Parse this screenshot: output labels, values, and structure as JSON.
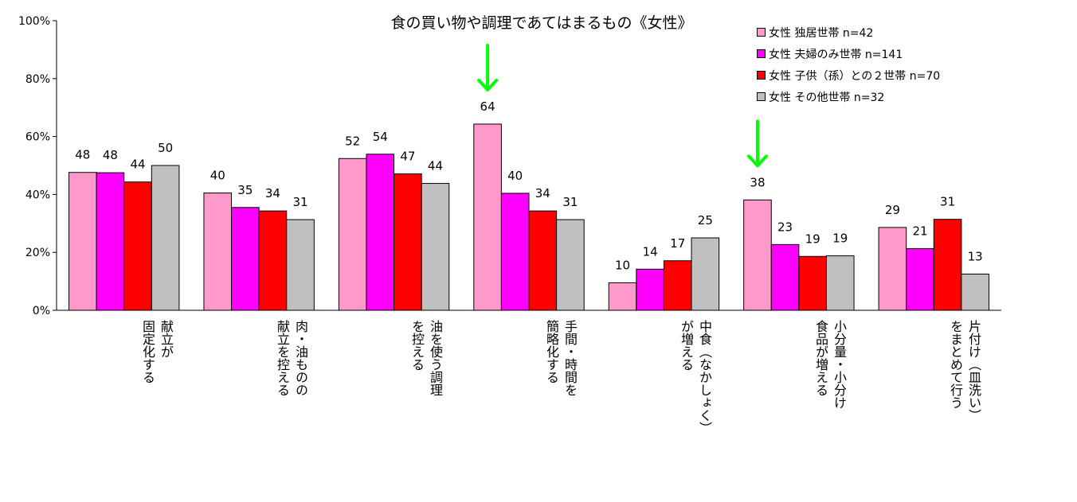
{
  "chart_data": {
    "type": "bar",
    "title": "食の買い物や調理であてはまるもの《女性》",
    "xlabel": "",
    "ylabel": "",
    "ylim": [
      0,
      100
    ],
    "y_ticks": [
      "0%",
      "20%",
      "40%",
      "60%",
      "80%",
      "100%"
    ],
    "grid": false,
    "legend_position": "top-right",
    "categories": [
      "献立が\n固定化する",
      "肉・油ものの\n献立を控える",
      "油を使う調理\nを控える",
      "手間・時間を\n簡略化する",
      "中食（なかしょく）\nが増える",
      "小分量・小分け\n食品が増える",
      "片付け（皿洗い）\nをまとめて行う"
    ],
    "series": [
      {
        "name": "女性  独居世帯  n=42",
        "color": "#FF99CC",
        "values": [
          48,
          40,
          52,
          64,
          10,
          38,
          29
        ],
        "bar_values": [
          47.6,
          40.5,
          52.4,
          64.3,
          9.5,
          38.1,
          28.6
        ]
      },
      {
        "name": "女性  夫婦のみ世帯  n=141",
        "color": "#FF00FF",
        "values": [
          48,
          35,
          54,
          40,
          14,
          23,
          21
        ],
        "bar_values": [
          47.5,
          35.5,
          53.9,
          40.4,
          14.2,
          22.7,
          21.3
        ]
      },
      {
        "name": "女性  子供（孫）との２世帯  n=70",
        "color": "#FF0000",
        "values": [
          44,
          34,
          47,
          34,
          17,
          19,
          31
        ],
        "bar_values": [
          44.3,
          34.3,
          47.1,
          34.3,
          17.1,
          18.6,
          31.4
        ]
      },
      {
        "name": "女性  その他世帯  n=32",
        "color": "#C0C0C0",
        "values": [
          50,
          31,
          44,
          31,
          25,
          19,
          13
        ],
        "bar_values": [
          50.0,
          31.3,
          43.8,
          31.3,
          25.0,
          18.8,
          12.5
        ]
      }
    ],
    "annotations": [
      {
        "type": "arrow",
        "color": "#00FF00",
        "category_index": 3
      },
      {
        "type": "arrow",
        "color": "#00FF00",
        "category_index": 5
      }
    ]
  }
}
